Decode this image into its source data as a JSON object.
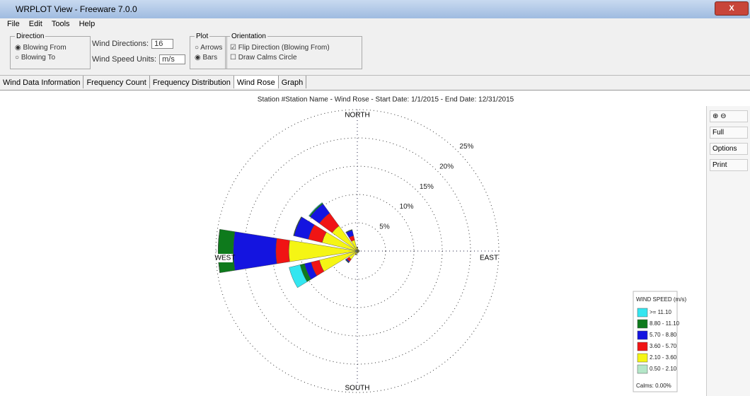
{
  "window": {
    "title": "WRPLOT View - Freeware 7.0.0"
  },
  "menu": [
    "File",
    "Edit",
    "Tools",
    "Help"
  ],
  "options": {
    "direction": {
      "title": "Direction",
      "choices": [
        "Blowing From",
        "Blowing To"
      ]
    },
    "settings": [
      {
        "label": "Wind Directions:",
        "value": "16"
      },
      {
        "label": "Wind Speed Units:",
        "value": "m/s"
      }
    ],
    "plot": {
      "title": "Plot",
      "choices": [
        "Arrows",
        "Bars"
      ]
    },
    "orientation": {
      "title": "Orientation",
      "choices": [
        "Flip Direction (Blowing From)",
        "Draw Calms Circle"
      ]
    }
  },
  "tabs": [
    "Wind Data Information",
    "Frequency Count",
    "Frequency Distribution",
    "Wind Rose",
    "Graph"
  ],
  "tools": [
    "Full",
    "Options",
    "Print"
  ],
  "chart_data": {
    "type": "wind-rose",
    "title": "Station #Station Name - Wind Rose - Start Date: 1/1/2015 - End Date: 12/31/2015",
    "axis_labels": {
      "north": "NORTH",
      "south": "SOUTH",
      "east": "EAST",
      "west": "WEST"
    },
    "directions": [
      0,
      22.5,
      45,
      67.5,
      90,
      112.5,
      135,
      157.5,
      180,
      202.5,
      225,
      247.5,
      270,
      292.5,
      315,
      337.5
    ],
    "rlim": [
      0,
      25
    ],
    "rticks": [
      {
        "value": 5,
        "label": "5%"
      },
      {
        "value": 10,
        "label": "10%"
      },
      {
        "value": 15,
        "label": "15%"
      },
      {
        "value": 20,
        "label": "20%"
      },
      {
        "value": 25,
        "label": "25%"
      }
    ],
    "legend_title": "WIND SPEED (m/s)",
    "calms": "Calms: 0.00%",
    "series": [
      {
        "name": ">= 11.10",
        "color": "#33e6f0",
        "values": [
          0,
          0,
          0,
          0,
          0,
          0,
          0,
          0,
          0,
          0,
          0,
          2.0,
          0,
          0,
          0.1,
          0
        ]
      },
      {
        "name": "8.80 - 11.10",
        "color": "#0e7a1c",
        "values": [
          0,
          0,
          0,
          0,
          0,
          0,
          0,
          0,
          0,
          0,
          0.1,
          0.8,
          2.7,
          0.1,
          0.2,
          0.1
        ]
      },
      {
        "name": "5.70 - 8.80",
        "color": "#1414e0",
        "values": [
          0,
          0,
          0,
          0,
          0,
          0,
          0,
          0,
          0,
          0,
          0.2,
          1.2,
          7.5,
          2.6,
          2.0,
          1.0
        ]
      },
      {
        "name": "3.60 - 5.70",
        "color": "#f01414",
        "values": [
          0.1,
          0,
          0,
          0,
          0,
          0,
          0,
          0,
          0,
          0.1,
          0.5,
          1.5,
          2.3,
          2.5,
          2.8,
          0.8
        ]
      },
      {
        "name": "2.10 - 3.60",
        "color": "#f5f514",
        "values": [
          0.4,
          0.2,
          0.2,
          0.2,
          0.3,
          0.2,
          0.2,
          0.2,
          0.3,
          0.5,
          1.5,
          6.5,
          11.8,
          6.0,
          5.2,
          1.8
        ]
      },
      {
        "name": "0.50 - 2.10",
        "color": "#b4e6c8",
        "values": [
          0.2,
          0.1,
          0.1,
          0.1,
          0.1,
          0.1,
          0.1,
          0.1,
          0.1,
          0.1,
          0.3,
          0.4,
          0.3,
          0.4,
          0.3,
          0.2
        ]
      }
    ]
  }
}
